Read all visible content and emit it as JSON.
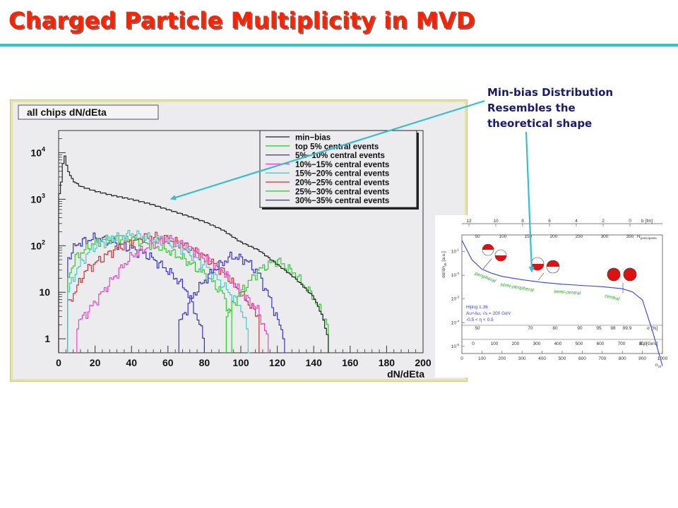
{
  "slide": {
    "title": "Charged Particle Multiplicity in MVD"
  },
  "annotation": {
    "lines": [
      "Min-bias Distribution",
      "Resembles the",
      "theoretical shape"
    ]
  },
  "colors": {
    "title": "#ff2200",
    "rule": "#33c3cc",
    "annotation": "#1a1a6e",
    "arrow": "#33bfd0"
  },
  "chart_data": [
    {
      "type": "histogram",
      "title": "all chips dN/dEta",
      "xlabel": "dN/dEta",
      "ylabel": "",
      "xlim": [
        0,
        200
      ],
      "ylim": [
        0.5,
        30000
      ],
      "log_y": true,
      "x_ticks": [
        "0",
        "20",
        "40",
        "60",
        "80",
        "100",
        "120",
        "140",
        "160",
        "180",
        "200"
      ],
      "y_ticks": [
        {
          "value": 1,
          "label": "1"
        },
        {
          "value": 10,
          "label": "10"
        },
        {
          "value": 100,
          "label": "10",
          "exp": "2"
        },
        {
          "value": 1000,
          "label": "10",
          "exp": "3"
        },
        {
          "value": 10000,
          "label": "10",
          "exp": "4"
        }
      ],
      "legend_position": "top-right",
      "series": [
        {
          "name": "min−bias",
          "color": "#222222",
          "points": [
            [
              0,
              1000
            ],
            [
              2,
              3000
            ],
            [
              3,
              12000
            ],
            [
              4,
              6000
            ],
            [
              6,
              3500
            ],
            [
              8,
              2500
            ],
            [
              12,
              1900
            ],
            [
              20,
              1500
            ],
            [
              30,
              1200
            ],
            [
              40,
              1000
            ],
            [
              50,
              800
            ],
            [
              60,
              600
            ],
            [
              70,
              450
            ],
            [
              80,
              330
            ],
            [
              90,
              220
            ],
            [
              100,
              120
            ],
            [
              110,
              80
            ],
            [
              120,
              40
            ],
            [
              130,
              20
            ],
            [
              140,
              8
            ],
            [
              145,
              3
            ],
            [
              148,
              1
            ]
          ]
        },
        {
          "name": "top 5% central events",
          "color": "#33cc33",
          "points": [
            [
              92,
              3
            ],
            [
              100,
              10
            ],
            [
              110,
              30
            ],
            [
              120,
              50
            ],
            [
              130,
              25
            ],
            [
              140,
              8
            ],
            [
              148,
              2
            ]
          ]
        },
        {
          "name": "5%−10% central events",
          "color": "#3333cc",
          "points": [
            [
              66,
              2
            ],
            [
              75,
              10
            ],
            [
              85,
              30
            ],
            [
              95,
              60
            ],
            [
              103,
              50
            ],
            [
              110,
              25
            ],
            [
              117,
              6
            ],
            [
              124,
              1
            ]
          ]
        },
        {
          "name": "10%−15% central events",
          "color": "#ee44cc",
          "points": [
            [
              10,
              2
            ],
            [
              20,
              6
            ],
            [
              30,
              20
            ],
            [
              40,
              60
            ],
            [
              50,
              100
            ],
            [
              60,
              150
            ],
            [
              70,
              100
            ],
            [
              80,
              60
            ],
            [
              90,
              30
            ],
            [
              100,
              10
            ],
            [
              110,
              4
            ],
            [
              115,
              1
            ]
          ]
        },
        {
          "name": "15%−20% central events",
          "color": "#44cccc",
          "points": [
            [
              5,
              10
            ],
            [
              10,
              30
            ],
            [
              15,
              60
            ],
            [
              20,
              100
            ],
            [
              30,
              150
            ],
            [
              40,
              180
            ],
            [
              50,
              150
            ],
            [
              60,
              120
            ],
            [
              70,
              80
            ],
            [
              80,
              40
            ],
            [
              90,
              15
            ],
            [
              100,
              5
            ],
            [
              105,
              1
            ]
          ]
        },
        {
          "name": "20%−25% central events",
          "color": "#cc3333",
          "points": [
            [
              5,
              5
            ],
            [
              15,
              30
            ],
            [
              30,
              80
            ],
            [
              40,
              130
            ],
            [
              50,
              160
            ],
            [
              60,
              140
            ],
            [
              70,
              100
            ],
            [
              80,
              60
            ],
            [
              90,
              30
            ],
            [
              100,
              10
            ],
            [
              110,
              3
            ]
          ]
        },
        {
          "name": "25%−30% central events",
          "color": "#33cc33",
          "points": [
            [
              5,
              20
            ],
            [
              10,
              60
            ],
            [
              20,
              120
            ],
            [
              30,
              150
            ],
            [
              40,
              140
            ],
            [
              50,
              110
            ],
            [
              60,
              80
            ],
            [
              70,
              50
            ],
            [
              80,
              25
            ],
            [
              90,
              10
            ],
            [
              95,
              3
            ]
          ]
        },
        {
          "name": "30%−35% central events",
          "color": "#3333cc",
          "points": [
            [
              5,
              50
            ],
            [
              10,
              110
            ],
            [
              20,
              150
            ],
            [
              30,
              120
            ],
            [
              40,
              90
            ],
            [
              50,
              60
            ],
            [
              60,
              30
            ],
            [
              70,
              12
            ],
            [
              75,
              4
            ],
            [
              80,
              1
            ]
          ]
        }
      ]
    },
    {
      "type": "line",
      "title": "",
      "ylabel": "dσ/dn",
      "ylabel_sub": "ch",
      "ylabel_unit": "[a.u.]",
      "x": [
        0,
        50,
        100,
        150,
        200,
        300,
        400,
        500,
        600,
        700,
        800,
        850,
        900,
        950,
        1000
      ],
      "y": [
        0.3,
        0.045,
        0.018,
        0.012,
        0.009,
        0.0065,
        0.005,
        0.0042,
        0.0037,
        0.0033,
        0.0027,
        0.002,
        0.00091,
        4.5e-05,
        1.5e-06
      ],
      "xlim": [
        0,
        1000
      ],
      "log_y": true,
      "bottom_axis": {
        "ticks": [
          "0",
          "100",
          "200",
          "300",
          "400",
          "500",
          "600",
          "700",
          "800",
          "900",
          "1000"
        ],
        "label": "n",
        "label_sub": "ch"
      },
      "et_axis": {
        "ticks": [
          "0",
          "100",
          "200",
          "300",
          "400",
          "500",
          "600",
          "700",
          "800"
        ],
        "label": "E",
        "label_sub": "T",
        "label_unit": "[GeV]"
      },
      "sigma_axis": {
        "ticks": [
          "50",
          "70",
          "80",
          "90",
          "95",
          "98",
          "99.9"
        ],
        "label": "σ [%]"
      },
      "npart_axis": {
        "ticks": [
          "50",
          "100",
          "150",
          "200",
          "250",
          "300",
          "350"
        ],
        "label": "N",
        "label_sub": "participants"
      },
      "b_axis": {
        "ticks": [
          "12",
          "10",
          "8",
          "6",
          "4",
          "2",
          "0"
        ],
        "label": "b [fm]"
      },
      "region_labels": [
        "peripheral",
        "semi-peripheral",
        "semi-central",
        "central"
      ],
      "info_text": [
        "Hijing 1.36",
        "Au+Au, √s = 200 GeV",
        "-0.5 < η < 0.5"
      ]
    }
  ]
}
